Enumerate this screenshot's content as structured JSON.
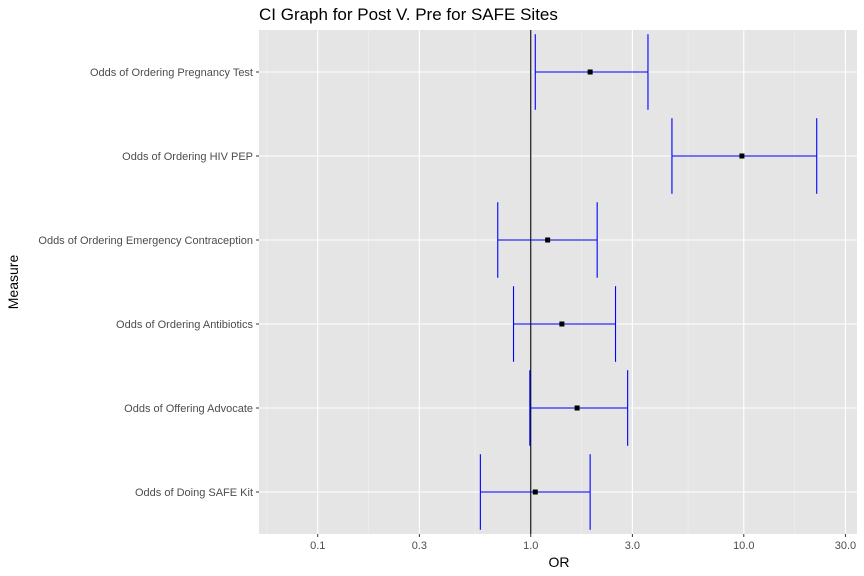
{
  "chart_data": {
    "type": "errorbar",
    "title": "CI Graph for Post V. Pre for SAFE Sites",
    "xlabel": "OR",
    "ylabel": "Measure",
    "x_scale": "log10",
    "xlim": [
      0.053,
      34
    ],
    "x_ticks": [
      0.1,
      0.3,
      1.0,
      3.0,
      10.0,
      30.0
    ],
    "x_tick_labels": [
      "0.1",
      "0.3",
      "1.0",
      "3.0",
      "10.0",
      "30.0"
    ],
    "reference_line": 1.0,
    "grid": true,
    "categories": [
      "Odds of Ordering Pregnancy Test",
      "Odds of Ordering HIV PEP",
      "Odds of Ordering Emergency Contraception",
      "Odds of Ordering Antibiotics",
      "Odds of Offering Advocate",
      "Odds of Doing SAFE Kit"
    ],
    "estimates": [
      1.9,
      9.8,
      1.2,
      1.4,
      1.65,
      1.05
    ],
    "lower": [
      1.05,
      4.6,
      0.7,
      0.83,
      0.99,
      0.58
    ],
    "upper": [
      3.55,
      22.0,
      2.05,
      2.5,
      2.85,
      1.9
    ],
    "colors": {
      "panel": "#e5e5e5",
      "grid_major": "#ffffff",
      "grid_minor": "#f0f0f0",
      "errorbar": "#0000ff",
      "point": "#000000",
      "reference": "#000000"
    }
  }
}
